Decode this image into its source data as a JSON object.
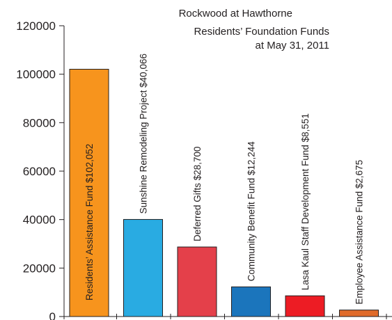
{
  "chart_data": {
    "type": "bar",
    "title_lines": [
      "Rockwood at Hawthorne",
      "Residents’ Foundation Funds",
      "at May 31, 2011"
    ],
    "xlabel": "",
    "ylabel": "",
    "ylim": [
      0,
      120000
    ],
    "yticks": [
      "0",
      "20000",
      "40000",
      "60000",
      "80000",
      "100000",
      "120000"
    ],
    "grid": false,
    "legend": "none",
    "categories": [
      "Residents’ Assistance Fund",
      "Sunshine Remodeling Project",
      "Deferred Gifts",
      "Community Benefit Fund",
      "Lasa Kaul Staff Development Fund",
      "Employee Assistance Fund"
    ],
    "values": [
      102052,
      40066,
      28700,
      12244,
      8551,
      2675
    ],
    "data_labels": [
      "Residents’ Assistance Fund  $102,052",
      "Sunshine Remodeling Project  $40,066",
      "Deferred Gifts  $28,700",
      "Community Benefit Fund  $12,244",
      "Lasa Kaul Staff Development Fund  $8,551",
      "Employee Assistance Fund  $2,675"
    ],
    "colors": [
      "#f7941d",
      "#29abe2",
      "#e4404a",
      "#1b75bc",
      "#ed1c24",
      "#e06b2b"
    ]
  }
}
